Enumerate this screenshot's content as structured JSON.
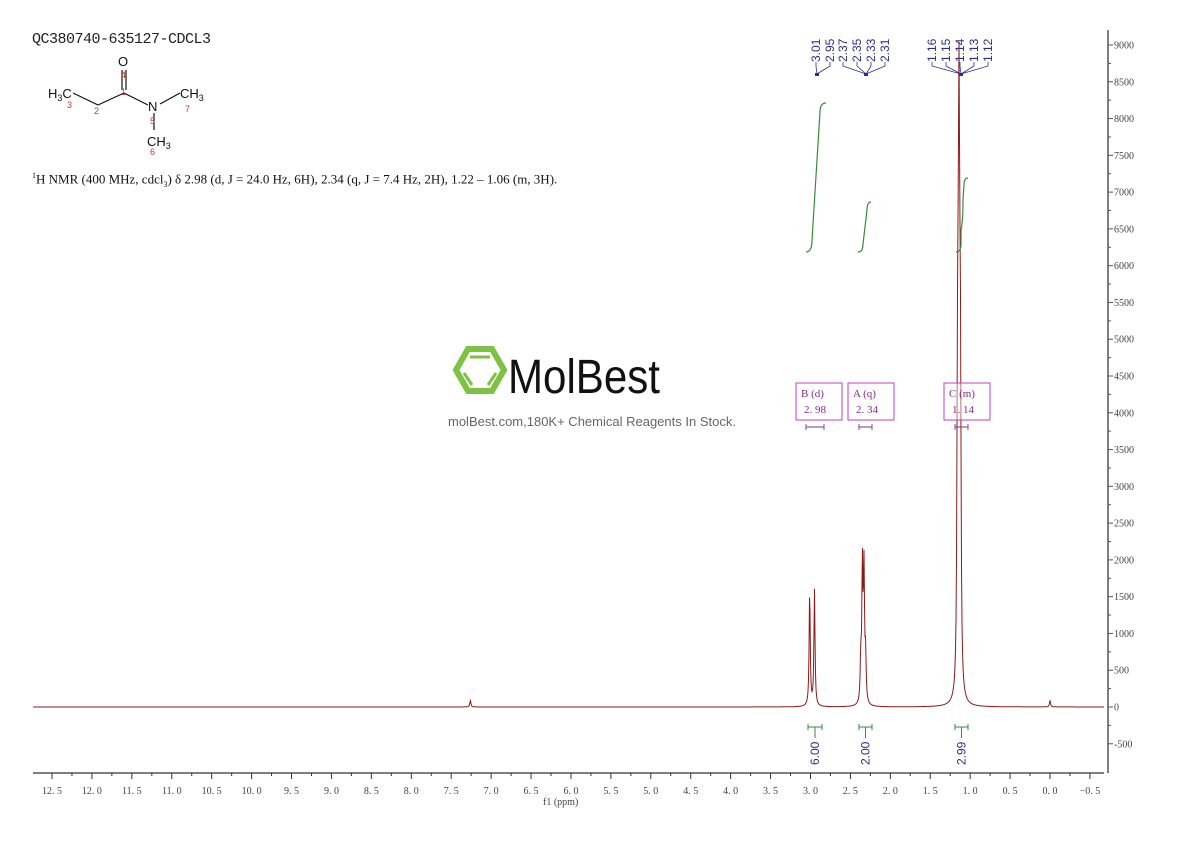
{
  "header": {
    "sample_id": "QC380740-635127-CDCL3",
    "nmr_description": {
      "prefix_sup": "1",
      "main": "H NMR (400 MHz, cdcl",
      "sub": "3",
      "rest": ") δ 2.98 (d, J = 24.0 Hz, 6H), 2.34 (q, J = 7.4 Hz, 2H), 1.22 – 1.06 (m, 3H)."
    }
  },
  "structure": {
    "name": "N,N-dimethylpropanamide",
    "atoms": [
      {
        "label": "O",
        "num": "4"
      },
      {
        "label": "H3C",
        "num": "3"
      },
      {
        "label": "C",
        "num": "2"
      },
      {
        "label": "C",
        "num": "1"
      },
      {
        "label": "N",
        "num": "5"
      },
      {
        "label": "CH3",
        "num": "7"
      },
      {
        "label": "CH3",
        "num": "6"
      }
    ]
  },
  "watermark": {
    "brand": "MolBest",
    "caption": "molBest.com,180K+ Chemical Reagents In Stock.",
    "logo_color": "#7dc242"
  },
  "colors": {
    "spectrum": "#8b1a1a",
    "integral": "#3a8a3a",
    "peak_label": "#2a2f8a",
    "multiplet_box": "#c040c0",
    "axis": "#555555"
  },
  "chart_data": {
    "type": "line",
    "title": "QC380740-635127-CDCL3",
    "xlabel": "f1 (ppm)",
    "ylabel": "",
    "xlim": [
      12.8,
      -0.7
    ],
    "ylim": [
      -850,
      9200
    ],
    "x_ticks": [
      "12.5",
      "12.0",
      "11.5",
      "11.0",
      "10.5",
      "10.0",
      "9.5",
      "9.0",
      "8.5",
      "8.0",
      "7.5",
      "7.0",
      "6.5",
      "6.0",
      "5.5",
      "5.0",
      "4.5",
      "4.0",
      "3.5",
      "3.0",
      "2.5",
      "2.0",
      "1.5",
      "1.0",
      "0.5",
      "0.0",
      "-0.5"
    ],
    "y_ticks": [
      "9000",
      "8500",
      "8000",
      "7500",
      "7000",
      "6500",
      "6000",
      "5500",
      "5000",
      "4500",
      "4000",
      "3500",
      "3000",
      "2500",
      "2000",
      "1500",
      "1000",
      "500",
      "0",
      "-500"
    ],
    "peaks": [
      {
        "ppm": 7.26,
        "intensity": 90,
        "note": "CDCl3 residual"
      },
      {
        "ppm": 3.01,
        "intensity": 1580
      },
      {
        "ppm": 2.95,
        "intensity": 1580
      },
      {
        "ppm": 2.37,
        "intensity": 580
      },
      {
        "ppm": 2.35,
        "intensity": 1850
      },
      {
        "ppm": 2.33,
        "intensity": 1780
      },
      {
        "ppm": 2.31,
        "intensity": 620
      },
      {
        "ppm": 1.16,
        "intensity": 3100
      },
      {
        "ppm": 1.15,
        "intensity": 3000
      },
      {
        "ppm": 1.14,
        "intensity": 5850
      },
      {
        "ppm": 1.13,
        "intensity": 3000
      },
      {
        "ppm": 1.12,
        "intensity": 3100
      },
      {
        "ppm": 0.0,
        "intensity": 90,
        "note": "TMS"
      }
    ],
    "peak_labels": {
      "group1": [
        "3.01",
        "2.95"
      ],
      "group2": [
        "2.37",
        "2.35",
        "2.33",
        "2.31"
      ],
      "group3": [
        "1.16",
        "1.15",
        "1.14",
        "1.13",
        "1.12"
      ]
    },
    "multiplets": [
      {
        "label": "B",
        "type": "(d)",
        "shift": "2.98"
      },
      {
        "label": "A",
        "type": "(q)",
        "shift": "2.34"
      },
      {
        "label": "C",
        "type": "(m)",
        "shift": "1.14"
      }
    ],
    "integrals": [
      {
        "range": [
          3.05,
          2.9
        ],
        "value": "6.00"
      },
      {
        "range": [
          2.4,
          2.28
        ],
        "value": "2.00"
      },
      {
        "range": [
          1.2,
          1.08
        ],
        "value": "2.99"
      }
    ]
  }
}
